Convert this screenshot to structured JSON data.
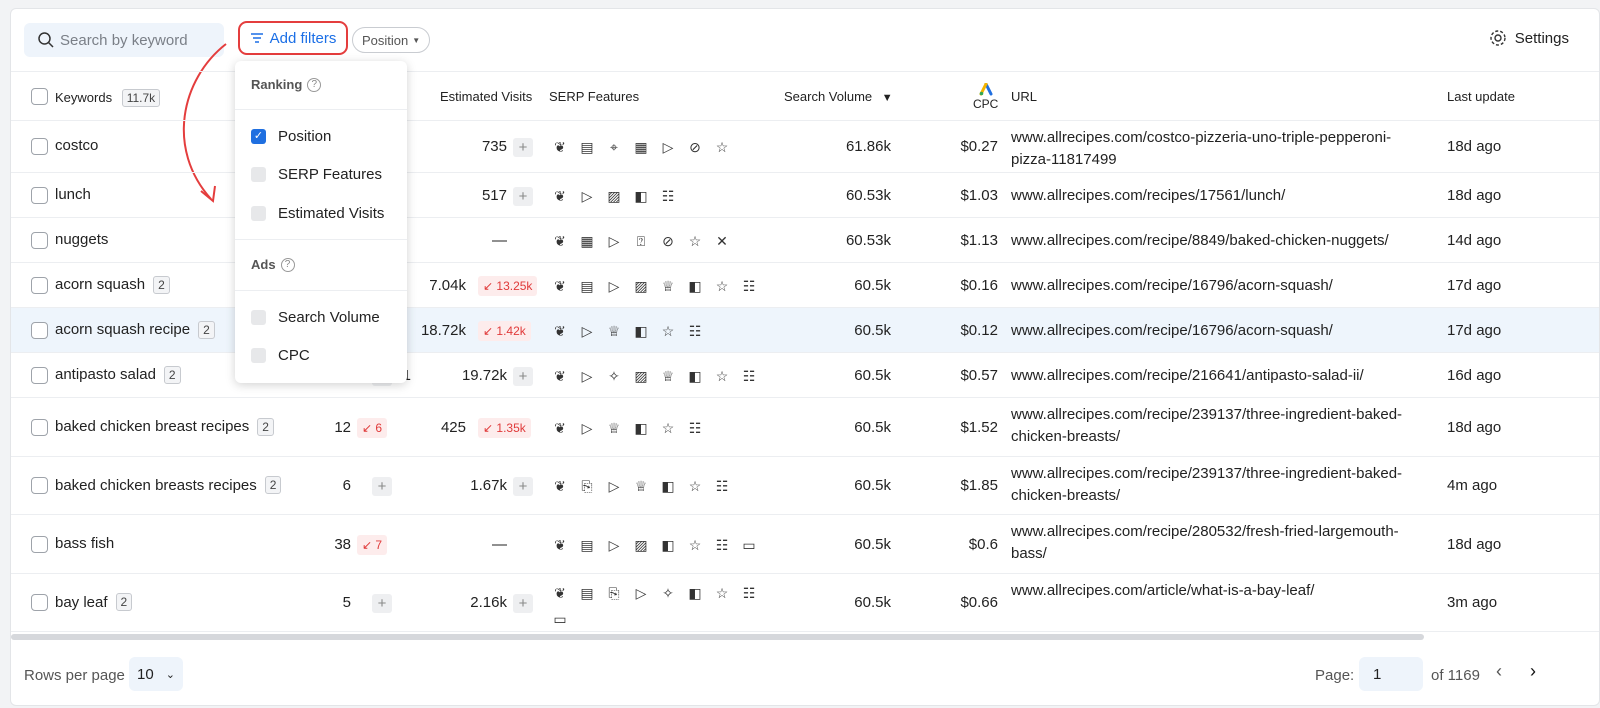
{
  "toolbar": {
    "search_placeholder": "Search by keyword",
    "add_filters": "Add filters",
    "position_chip": "Position",
    "settings": "Settings"
  },
  "header": {
    "keywords": "Keywords",
    "keywords_count": "11.7k",
    "estimated_visits": "Estimated Visits",
    "serp_features": "SERP Features",
    "search_volume": "Search Volume",
    "cpc": "CPC",
    "url": "URL",
    "last_update": "Last update"
  },
  "dropdown": {
    "ranking_label": "Ranking",
    "ads_label": "Ads",
    "options": [
      {
        "label": "Position",
        "checked": true
      },
      {
        "label": "SERP Features",
        "checked": false
      },
      {
        "label": "Estimated Visits",
        "checked": false
      },
      {
        "label": "Search Volume",
        "checked": false
      },
      {
        "label": "CPC",
        "checked": false
      }
    ]
  },
  "rows": [
    {
      "keyword": "costco",
      "count": "",
      "position": "",
      "pos_change": "",
      "visits": "735",
      "visits_change": "",
      "icons": [
        "leaf",
        "book",
        "pin",
        "news",
        "video",
        "link",
        "star"
      ],
      "volume": "61.86k",
      "cpc": "$0.27",
      "url": "www.allrecipes.com/costco-pizzeria-uno-triple-pepperoni-pizza-11817499",
      "updated": "18d ago"
    },
    {
      "keyword": "lunch",
      "count": "",
      "position": "",
      "pos_change": "",
      "visits": "517",
      "visits_change": "",
      "icons": [
        "leaf",
        "video",
        "image",
        "card",
        "chat"
      ],
      "volume": "60.53k",
      "cpc": "$1.03",
      "url": "www.allrecipes.com/recipes/17561/lunch/",
      "updated": "18d ago"
    },
    {
      "keyword": "nuggets",
      "count": "",
      "position": "",
      "pos_change": "",
      "visits": "—",
      "visits_change": "",
      "icons": [
        "leaf",
        "news",
        "video",
        "question",
        "link",
        "star",
        "x"
      ],
      "volume": "60.53k",
      "cpc": "$1.13",
      "url": "www.allrecipes.com/recipe/8849/baked-chicken-nuggets/",
      "updated": "14d ago"
    },
    {
      "keyword": "acorn squash",
      "count": "2",
      "position": "",
      "pos_change": "",
      "visits": "7.04k",
      "visits_change": "13.25k",
      "icons": [
        "leaf",
        "book",
        "video",
        "image",
        "chef",
        "card",
        "star",
        "chat"
      ],
      "volume": "60.5k",
      "cpc": "$0.16",
      "url": "www.allrecipes.com/recipe/16796/acorn-squash/",
      "updated": "17d ago"
    },
    {
      "keyword": "acorn squash recipe",
      "count": "2",
      "position": "",
      "pos_change": "",
      "visits": "18.72k",
      "visits_change": "1.42k",
      "icons": [
        "leaf",
        "video",
        "chef",
        "card",
        "star",
        "chat"
      ],
      "volume": "60.5k",
      "cpc": "$0.12",
      "url": "www.allrecipes.com/recipe/16796/acorn-squash/",
      "updated": "17d ago"
    },
    {
      "keyword": "antipasto salad",
      "count": "2",
      "position": "",
      "pos_change": "",
      "visits": "19.72k",
      "visits_change": "",
      "icons": [
        "leaf",
        "video",
        "sparkle",
        "image",
        "chef",
        "card",
        "star",
        "chat"
      ],
      "volume": "60.5k",
      "cpc": "$0.57",
      "url": "www.allrecipes.com/recipe/216641/antipasto-salad-ii/",
      "updated": "16d ago"
    },
    {
      "keyword": "baked chicken breast recipes",
      "count": "2",
      "position": "12",
      "pos_change": "6",
      "visits": "425",
      "visits_change": "1.35k",
      "icons": [
        "leaf",
        "video",
        "chef",
        "card",
        "star",
        "chat"
      ],
      "volume": "60.5k",
      "cpc": "$1.52",
      "url": "www.allrecipes.com/recipe/239137/three-ingredient-baked-chicken-breasts/",
      "updated": "18d ago"
    },
    {
      "keyword": "baked chicken breasts recipes",
      "count": "2",
      "position": "6",
      "pos_change": "",
      "visits": "1.67k",
      "visits_change": "",
      "icons": [
        "leaf",
        "doc",
        "video",
        "chef",
        "card",
        "star",
        "chat"
      ],
      "volume": "60.5k",
      "cpc": "$1.85",
      "url": "www.allrecipes.com/recipe/239137/three-ingredient-baked-chicken-breasts/",
      "updated": "4m ago"
    },
    {
      "keyword": "bass fish",
      "count": "",
      "position": "38",
      "pos_change": "7",
      "visits": "—",
      "visits_change": "",
      "icons": [
        "leaf",
        "book",
        "video",
        "image",
        "card",
        "star",
        "chat",
        "tray"
      ],
      "volume": "60.5k",
      "cpc": "$0.6",
      "url": "www.allrecipes.com/recipe/280532/fresh-fried-largemouth-bass/",
      "updated": "18d ago"
    },
    {
      "keyword": "bay leaf",
      "count": "2",
      "position": "5",
      "pos_change": "",
      "visits": "2.16k",
      "visits_change": "",
      "icons": [
        "leaf",
        "book",
        "doc",
        "video",
        "sparkle",
        "card",
        "star",
        "chat",
        "tray"
      ],
      "volume": "60.5k",
      "cpc": "$0.66",
      "url": "www.allrecipes.com/article/what-is-a-bay-leaf/",
      "updated": "3m ago"
    }
  ],
  "partial_position_antipasto": "1",
  "footer": {
    "rows_per_page_label": "Rows per page",
    "rows_per_page": "10",
    "page_label": "Page:",
    "page": "1",
    "of_label": "of 1169"
  },
  "colors": {
    "accent": "#1b6fe6",
    "highlight": "#e43d3d",
    "negative": "#e03a3a"
  }
}
